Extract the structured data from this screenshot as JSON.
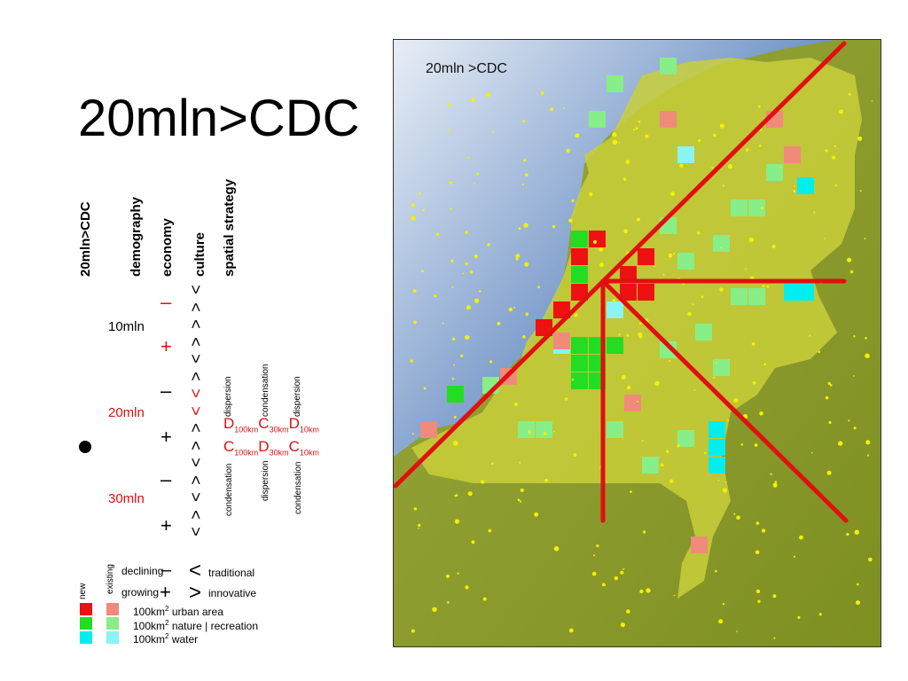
{
  "title": "20mln>CDC",
  "columns": {
    "col1": "20mln>CDC",
    "col2": "demography",
    "col3": "economy",
    "col4": "culture",
    "col5": "spatial strategy"
  },
  "levels": {
    "l1": "10mln",
    "l2": "20mln",
    "l3": "30mln"
  },
  "signs": {
    "minus": "–",
    "plus": "+"
  },
  "strategy": {
    "top_labels": [
      "dispersion",
      "condensation",
      "dispersion"
    ],
    "bottom_labels": [
      "condensation",
      "dispersion",
      "condensation"
    ],
    "row1": [
      {
        "letter": "D",
        "sub": "100km"
      },
      {
        "letter": "C",
        "sub": "30km"
      },
      {
        "letter": "D",
        "sub": "10km"
      }
    ],
    "row2": [
      {
        "letter": "C",
        "sub": "100km"
      },
      {
        "letter": "D",
        "sub": "30km"
      },
      {
        "letter": "C",
        "sub": "10km"
      }
    ]
  },
  "legend": {
    "new": "new",
    "existing": "existing",
    "declining": "declining",
    "growing": "growing",
    "traditional": "traditional",
    "innovative": "innovative",
    "urban_prefix": "100km",
    "urban_suffix": " urban area",
    "nature_prefix": "100km",
    "nature_suffix": " nature | recreation",
    "water_prefix": "100km",
    "water_suffix": " water",
    "sup": "2"
  },
  "map": {
    "label": "20mln >CDC"
  },
  "colors": {
    "accent_red": "#dd1111",
    "urban_new": "#ee1111",
    "urban_existing": "#f08a7a",
    "nature_new": "#22dd22",
    "nature_existing": "#88ee88",
    "water_new": "#00eeee",
    "water_existing": "#88f4f4",
    "land": "#cccc33",
    "sea": "#6b8fc4"
  }
}
